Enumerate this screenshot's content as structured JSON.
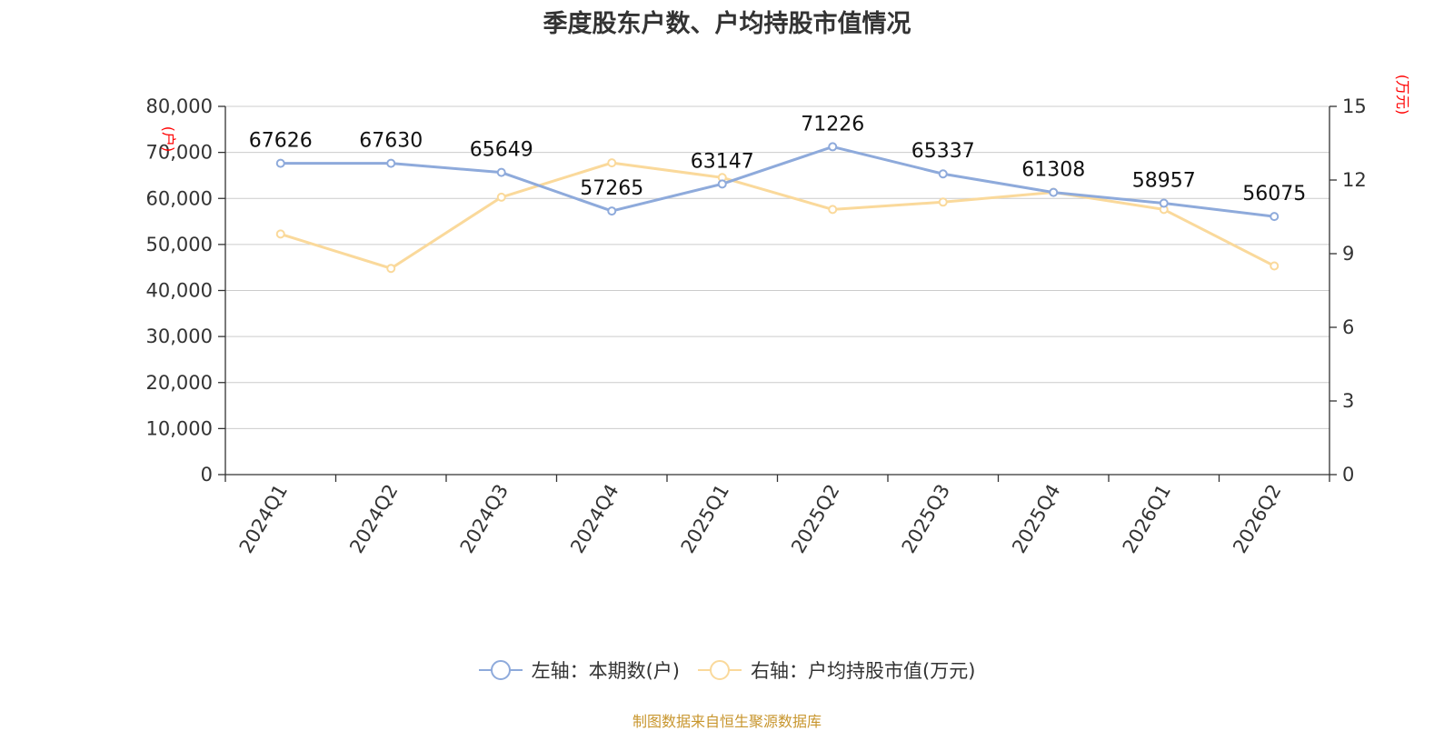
{
  "title": "季度股东户数、户均持股市值情况",
  "source": "制图数据来自恒生聚源数据库",
  "left_axis_unit": "(户)",
  "right_axis_unit": "(万元)",
  "legend": {
    "left_series": "左轴：本期数(户)",
    "right_series": "右轴：户均持股市值(万元)"
  },
  "colors": {
    "left_series": "#8eaadb",
    "right_series": "#fad99b",
    "unit_label": "#ff0000",
    "source": "#c8962e"
  },
  "chart_data": {
    "type": "line",
    "title": "季度股东户数、户均持股市值情况",
    "categories": [
      "2024Q1",
      "2024Q2",
      "2024Q3",
      "2024Q4",
      "2025Q1",
      "2025Q2",
      "2025Q3",
      "2025Q4",
      "2026Q1",
      "2026Q2"
    ],
    "series": [
      {
        "name": "左轴：本期数(户)",
        "axis": "left",
        "values": [
          67626,
          67630,
          65649,
          57265,
          63147,
          71226,
          65337,
          61308,
          58957,
          56075
        ],
        "data_labels_shown": true
      },
      {
        "name": "右轴：户均持股市值(万元)",
        "axis": "right",
        "values": [
          9.8,
          8.4,
          11.3,
          12.7,
          12.1,
          10.8,
          11.1,
          11.5,
          10.8,
          8.5
        ],
        "data_labels_shown": false
      }
    ],
    "y_left": {
      "label": "(户)",
      "ylim": [
        0,
        80000
      ],
      "ticks": [
        0,
        10000,
        20000,
        30000,
        40000,
        50000,
        60000,
        70000,
        80000
      ],
      "tick_labels": [
        "0",
        "10,000",
        "20,000",
        "30,000",
        "40,000",
        "50,000",
        "60,000",
        "70,000",
        "80,000"
      ]
    },
    "y_right": {
      "label": "(万元)",
      "ylim": [
        0,
        15
      ],
      "ticks": [
        0,
        3,
        6,
        9,
        12,
        15
      ],
      "tick_labels": [
        "0",
        "3",
        "6",
        "9",
        "12",
        "15"
      ]
    },
    "grid": true,
    "legend_position": "bottom"
  }
}
